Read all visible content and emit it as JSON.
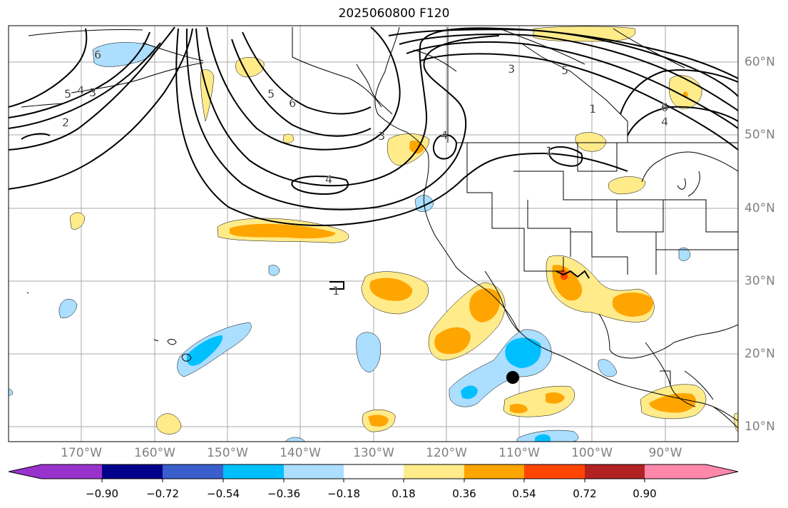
{
  "title": "2025060800 F120",
  "map": {
    "lat_labels": [
      "60°N",
      "50°N",
      "40°N",
      "30°N",
      "20°N",
      "10°N"
    ],
    "lon_labels": [
      "170°W",
      "160°W",
      "150°W",
      "140°W",
      "130°W",
      "120°W",
      "110°W",
      "100°W",
      "90°W"
    ],
    "contour_labels": [
      "6",
      "5",
      "4",
      "3",
      "2",
      "5",
      "6",
      "3",
      "4",
      "4",
      "1",
      "3",
      "5",
      "6",
      "4",
      "1",
      "1"
    ],
    "marker": {
      "lat": 16.8,
      "lon": -111.0
    }
  },
  "colorbar": {
    "ticks": [
      "−0.90",
      "−0.72",
      "−0.54",
      "−0.36",
      "−0.18",
      "0.18",
      "0.36",
      "0.54",
      "0.72",
      "0.90"
    ],
    "colors": [
      "#9932cc",
      "#00008b",
      "#3a5fcd",
      "#00bfff",
      "#abdeff",
      "#ffffff",
      "#ffeb8a",
      "#ffa500",
      "#ff4500",
      "#b22222",
      "#ff88aa"
    ]
  }
}
